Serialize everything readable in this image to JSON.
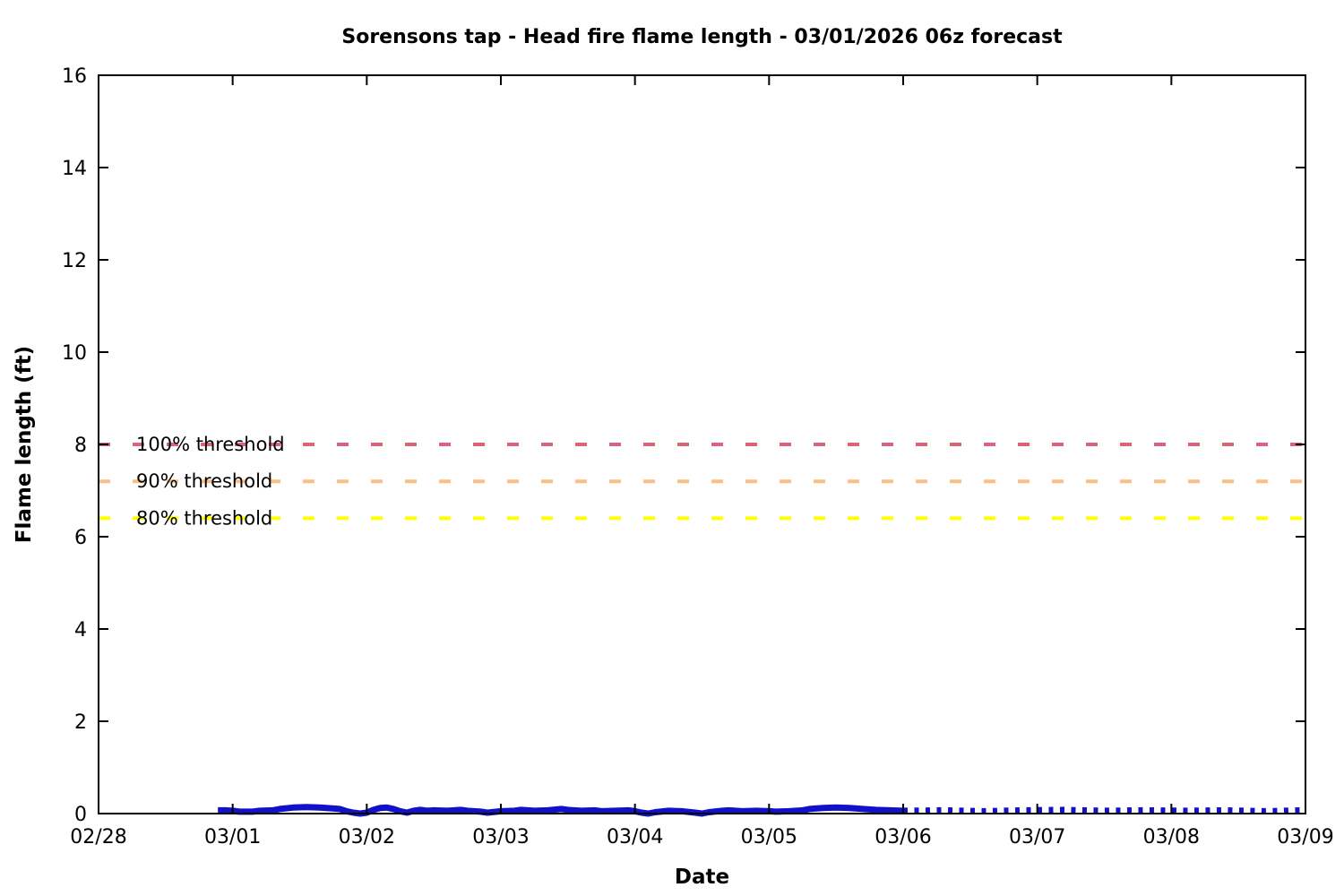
{
  "chart_data": {
    "type": "line",
    "title": "Sorensons tap - Head fire flame length - 03/01/2026 06z forecast",
    "xlabel": "Date",
    "ylabel": "Flame length (ft)",
    "x_tick_labels": [
      "02/28",
      "03/01",
      "03/02",
      "03/03",
      "03/04",
      "03/05",
      "03/06",
      "03/07",
      "03/08",
      "03/09"
    ],
    "y_ticks": [
      0,
      2,
      4,
      6,
      8,
      10,
      12,
      14,
      16
    ],
    "ylim": [
      0,
      16
    ],
    "xlim_days": [
      0,
      9
    ],
    "grid": false,
    "legend_position": "none",
    "axis_color": "#000000",
    "thresholds": [
      {
        "label": "100% threshold",
        "value": 8.0,
        "color": "#d9657a"
      },
      {
        "label": "90% threshold",
        "value": 7.2,
        "color": "#fbbe85"
      },
      {
        "label": "80% threshold",
        "value": 6.4,
        "color": "#ffff00"
      }
    ],
    "series": [
      {
        "name": "head-fire-flame-length-forecast",
        "style": "solid",
        "color": "#1111cc",
        "points": [
          [
            0.89,
            0.07
          ],
          [
            0.95,
            0.07
          ],
          [
            1.0,
            0.06
          ],
          [
            1.05,
            0.04
          ],
          [
            1.15,
            0.04
          ],
          [
            1.2,
            0.06
          ],
          [
            1.3,
            0.07
          ],
          [
            1.35,
            0.1
          ],
          [
            1.45,
            0.13
          ],
          [
            1.55,
            0.14
          ],
          [
            1.65,
            0.13
          ],
          [
            1.7,
            0.12
          ],
          [
            1.8,
            0.1
          ],
          [
            1.85,
            0.05
          ],
          [
            1.9,
            0.02
          ],
          [
            1.95,
            0.0
          ],
          [
            2.0,
            0.02
          ],
          [
            2.05,
            0.08
          ],
          [
            2.1,
            0.12
          ],
          [
            2.15,
            0.13
          ],
          [
            2.2,
            0.1
          ],
          [
            2.25,
            0.05
          ],
          [
            2.3,
            0.02
          ],
          [
            2.35,
            0.06
          ],
          [
            2.4,
            0.08
          ],
          [
            2.45,
            0.06
          ],
          [
            2.5,
            0.07
          ],
          [
            2.6,
            0.06
          ],
          [
            2.7,
            0.08
          ],
          [
            2.75,
            0.06
          ],
          [
            2.85,
            0.04
          ],
          [
            2.9,
            0.02
          ],
          [
            3.0,
            0.05
          ],
          [
            3.1,
            0.06
          ],
          [
            3.15,
            0.08
          ],
          [
            3.25,
            0.06
          ],
          [
            3.35,
            0.07
          ],
          [
            3.45,
            0.1
          ],
          [
            3.5,
            0.08
          ],
          [
            3.6,
            0.06
          ],
          [
            3.7,
            0.07
          ],
          [
            3.75,
            0.05
          ],
          [
            3.85,
            0.06
          ],
          [
            3.95,
            0.07
          ],
          [
            4.0,
            0.05
          ],
          [
            4.05,
            0.02
          ],
          [
            4.1,
            0.0
          ],
          [
            4.15,
            0.03
          ],
          [
            4.25,
            0.06
          ],
          [
            4.35,
            0.05
          ],
          [
            4.45,
            0.02
          ],
          [
            4.5,
            0.0
          ],
          [
            4.55,
            0.03
          ],
          [
            4.65,
            0.06
          ],
          [
            4.7,
            0.07
          ],
          [
            4.8,
            0.05
          ],
          [
            4.9,
            0.06
          ],
          [
            5.0,
            0.05
          ],
          [
            5.05,
            0.04
          ],
          [
            5.15,
            0.05
          ],
          [
            5.25,
            0.07
          ],
          [
            5.3,
            0.1
          ],
          [
            5.4,
            0.12
          ],
          [
            5.5,
            0.13
          ],
          [
            5.6,
            0.12
          ],
          [
            5.7,
            0.1
          ],
          [
            5.8,
            0.08
          ],
          [
            5.9,
            0.07
          ],
          [
            6.0,
            0.06
          ]
        ]
      },
      {
        "name": "head-fire-flame-length-extended",
        "style": "dotted",
        "color": "#1111cc",
        "points": [
          [
            6.0,
            0.06
          ],
          [
            6.3,
            0.07
          ],
          [
            6.6,
            0.05
          ],
          [
            6.9,
            0.07
          ],
          [
            7.2,
            0.08
          ],
          [
            7.5,
            0.06
          ],
          [
            7.8,
            0.07
          ],
          [
            8.1,
            0.06
          ],
          [
            8.4,
            0.07
          ],
          [
            8.7,
            0.05
          ],
          [
            9.0,
            0.07
          ]
        ]
      }
    ]
  }
}
